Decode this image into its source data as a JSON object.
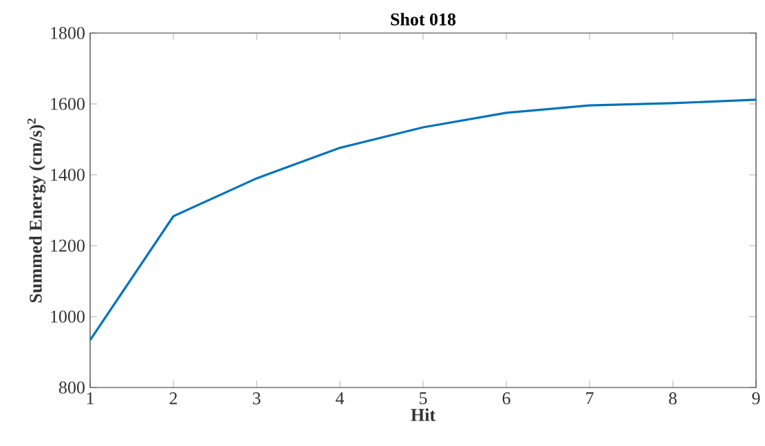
{
  "chart_data": {
    "type": "line",
    "title": "Shot 018",
    "xlabel": "Hit",
    "ylabel": "Summed Energy (cm/s)$^{2}$",
    "x": [
      1,
      2,
      3,
      4,
      5,
      6,
      7,
      8,
      9
    ],
    "series": [
      {
        "color": "#0072bd",
        "values": [
          934,
          1283,
          1390,
          1476,
          1534,
          1575,
          1596,
          1602,
          1612
        ]
      }
    ],
    "xlim": [
      1,
      9
    ],
    "ylim": [
      800,
      1800
    ],
    "xticks": [
      1,
      2,
      3,
      4,
      5,
      6,
      7,
      8,
      9
    ],
    "yticks": [
      800,
      1000,
      1200,
      1400,
      1600,
      1800
    ]
  }
}
